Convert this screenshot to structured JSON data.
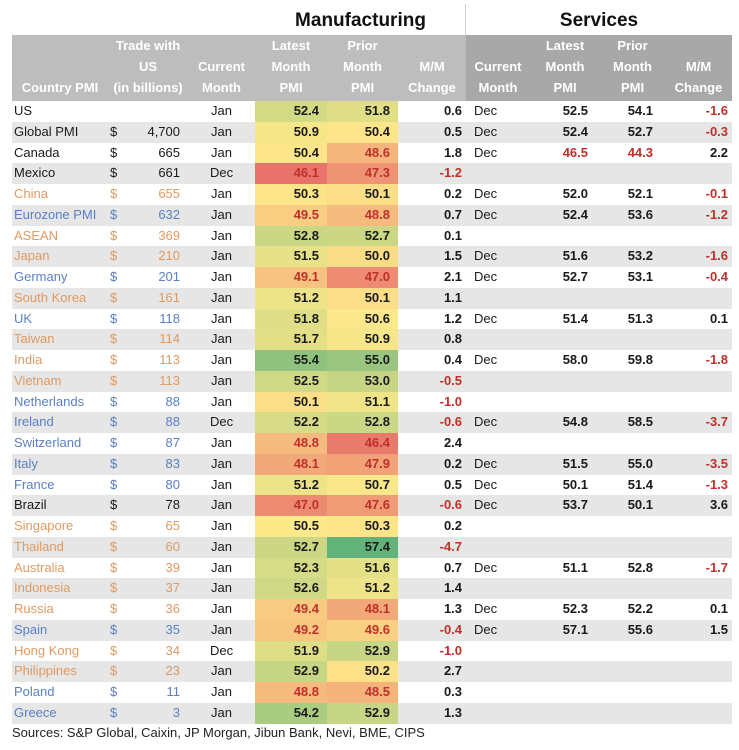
{
  "titles": {
    "manufacturing": "Manufacturing",
    "services": "Services"
  },
  "headers": {
    "country": [
      "Country PMI"
    ],
    "trade": [
      "Trade with",
      "US",
      "(in billions)"
    ],
    "mfg_current": [
      "Current",
      "Month"
    ],
    "mfg_latest": [
      "Latest",
      "Month",
      "PMI"
    ],
    "mfg_prior": [
      "Prior",
      "Month",
      "PMI"
    ],
    "mfg_mm": [
      "M/M",
      "Change"
    ],
    "svc_current": [
      "Current",
      "Month"
    ],
    "svc_latest": [
      "Latest",
      "Month",
      "PMI"
    ],
    "svc_prior": [
      "Prior",
      "Month",
      "PMI"
    ],
    "svc_mm": [
      "M/M",
      "Change"
    ]
  },
  "colors": {
    "header_mfg": "#bdbdbd",
    "header_svc": "#a8a8a8",
    "negative": "#c0302a",
    "group_americas": "#1a1a1a",
    "group_asia": "#e09a62",
    "group_europe": "#5b7fc4",
    "heat_low": "#e8736a",
    "heat_mid": "#fde98a",
    "heat_high": "#63b27a"
  },
  "sources": "Sources: S&P Global, Caixin, JP Morgan, Jibun Bank, Nevi, BME, CIPS",
  "chart_data": {
    "type": "table",
    "title": "Country PMI — Manufacturing and Services",
    "heatmap_columns": [
      "mfg_latest",
      "mfg_prior"
    ],
    "heatmap_scale": {
      "min": 46.1,
      "mid": 50.5,
      "max": 57.4
    },
    "rows": [
      {
        "country": "US",
        "group": "black",
        "dollar": "",
        "trade": "",
        "mfg_current": "Jan",
        "mfg_latest": 52.4,
        "mfg_prior": 51.8,
        "mfg_mm": "0.6",
        "svc_current": "Dec",
        "svc_latest": "52.5",
        "svc_prior": "54.1",
        "svc_mm": "-1.6"
      },
      {
        "country": "Global PMI",
        "group": "black",
        "dollar": "$",
        "trade": "4,700",
        "mfg_current": "Jan",
        "mfg_latest": 50.9,
        "mfg_prior": 50.4,
        "mfg_mm": "0.5",
        "svc_current": "Dec",
        "svc_latest": "52.4",
        "svc_prior": "52.7",
        "svc_mm": "-0.3"
      },
      {
        "country": "Canada",
        "group": "black",
        "dollar": "$",
        "trade": "665",
        "mfg_current": "Jan",
        "mfg_latest": 50.4,
        "mfg_prior": 48.6,
        "mfg_mm": "1.8",
        "svc_current": "Dec",
        "svc_latest": "46.5",
        "svc_prior": "44.3",
        "svc_mm": "2.2"
      },
      {
        "country": "Mexico",
        "group": "black",
        "dollar": "$",
        "trade": "661",
        "mfg_current": "Dec",
        "mfg_latest": 46.1,
        "mfg_prior": 47.3,
        "mfg_mm": "-1.2",
        "svc_current": "",
        "svc_latest": "",
        "svc_prior": "",
        "svc_mm": ""
      },
      {
        "country": "China",
        "group": "orange",
        "dollar": "$",
        "trade": "655",
        "mfg_current": "Jan",
        "mfg_latest": 50.3,
        "mfg_prior": 50.1,
        "mfg_mm": "0.2",
        "svc_current": "Dec",
        "svc_latest": "52.0",
        "svc_prior": "52.1",
        "svc_mm": "-0.1"
      },
      {
        "country": "Eurozone PMI",
        "group": "blue",
        "dollar": "$",
        "trade": "632",
        "mfg_current": "Jan",
        "mfg_latest": 49.5,
        "mfg_prior": 48.8,
        "mfg_mm": "0.7",
        "svc_current": "Dec",
        "svc_latest": "52.4",
        "svc_prior": "53.6",
        "svc_mm": "-1.2"
      },
      {
        "country": "ASEAN",
        "group": "orange",
        "dollar": "$",
        "trade": "369",
        "mfg_current": "Jan",
        "mfg_latest": 52.8,
        "mfg_prior": 52.7,
        "mfg_mm": "0.1",
        "svc_current": "",
        "svc_latest": "",
        "svc_prior": "",
        "svc_mm": ""
      },
      {
        "country": "Japan",
        "group": "orange",
        "dollar": "$",
        "trade": "210",
        "mfg_current": "Jan",
        "mfg_latest": 51.5,
        "mfg_prior": 50.0,
        "mfg_mm": "1.5",
        "svc_current": "Dec",
        "svc_latest": "51.6",
        "svc_prior": "53.2",
        "svc_mm": "-1.6"
      },
      {
        "country": "Germany",
        "group": "blue",
        "dollar": "$",
        "trade": "201",
        "mfg_current": "Jan",
        "mfg_latest": 49.1,
        "mfg_prior": 47.0,
        "mfg_mm": "2.1",
        "svc_current": "Dec",
        "svc_latest": "52.7",
        "svc_prior": "53.1",
        "svc_mm": "-0.4"
      },
      {
        "country": "South Korea",
        "group": "orange",
        "dollar": "$",
        "trade": "161",
        "mfg_current": "Jan",
        "mfg_latest": 51.2,
        "mfg_prior": 50.1,
        "mfg_mm": "1.1",
        "svc_current": "",
        "svc_latest": "",
        "svc_prior": "",
        "svc_mm": ""
      },
      {
        "country": "UK",
        "group": "blue",
        "dollar": "$",
        "trade": "118",
        "mfg_current": "Jan",
        "mfg_latest": 51.8,
        "mfg_prior": 50.6,
        "mfg_mm": "1.2",
        "svc_current": "Dec",
        "svc_latest": "51.4",
        "svc_prior": "51.3",
        "svc_mm": "0.1"
      },
      {
        "country": "Taiwan",
        "group": "orange",
        "dollar": "$",
        "trade": "114",
        "mfg_current": "Jan",
        "mfg_latest": 51.7,
        "mfg_prior": 50.9,
        "mfg_mm": "0.8",
        "svc_current": "",
        "svc_latest": "",
        "svc_prior": "",
        "svc_mm": ""
      },
      {
        "country": "India",
        "group": "orange",
        "dollar": "$",
        "trade": "113",
        "mfg_current": "Jan",
        "mfg_latest": 55.4,
        "mfg_prior": 55.0,
        "mfg_mm": "0.4",
        "svc_current": "Dec",
        "svc_latest": "58.0",
        "svc_prior": "59.8",
        "svc_mm": "-1.8"
      },
      {
        "country": "Vietnam",
        "group": "orange",
        "dollar": "$",
        "trade": "113",
        "mfg_current": "Jan",
        "mfg_latest": 52.5,
        "mfg_prior": 53.0,
        "mfg_mm": "-0.5",
        "svc_current": "",
        "svc_latest": "",
        "svc_prior": "",
        "svc_mm": ""
      },
      {
        "country": "Netherlands",
        "group": "blue",
        "dollar": "$",
        "trade": "88",
        "mfg_current": "Jan",
        "mfg_latest": 50.1,
        "mfg_prior": 51.1,
        "mfg_mm": "-1.0",
        "svc_current": "",
        "svc_latest": "",
        "svc_prior": "",
        "svc_mm": ""
      },
      {
        "country": "Ireland",
        "group": "blue",
        "dollar": "$",
        "trade": "88",
        "mfg_current": "Dec",
        "mfg_latest": 52.2,
        "mfg_prior": 52.8,
        "mfg_mm": "-0.6",
        "svc_current": "Dec",
        "svc_latest": "54.8",
        "svc_prior": "58.5",
        "svc_mm": "-3.7"
      },
      {
        "country": "Switzerland",
        "group": "blue",
        "dollar": "$",
        "trade": "87",
        "mfg_current": "Jan",
        "mfg_latest": 48.8,
        "mfg_prior": 46.4,
        "mfg_mm": "2.4",
        "svc_current": "",
        "svc_latest": "",
        "svc_prior": "",
        "svc_mm": ""
      },
      {
        "country": "Italy",
        "group": "blue",
        "dollar": "$",
        "trade": "83",
        "mfg_current": "Jan",
        "mfg_latest": 48.1,
        "mfg_prior": 47.9,
        "mfg_mm": "0.2",
        "svc_current": "Dec",
        "svc_latest": "51.5",
        "svc_prior": "55.0",
        "svc_mm": "-3.5"
      },
      {
        "country": "France",
        "group": "blue",
        "dollar": "$",
        "trade": "80",
        "mfg_current": "Jan",
        "mfg_latest": 51.2,
        "mfg_prior": 50.7,
        "mfg_mm": "0.5",
        "svc_current": "Dec",
        "svc_latest": "50.1",
        "svc_prior": "51.4",
        "svc_mm": "-1.3"
      },
      {
        "country": "Brazil",
        "group": "black",
        "dollar": "$",
        "trade": "78",
        "mfg_current": "Jan",
        "mfg_latest": 47.0,
        "mfg_prior": 47.6,
        "mfg_mm": "-0.6",
        "svc_current": "Dec",
        "svc_latest": "53.7",
        "svc_prior": "50.1",
        "svc_mm": "3.6"
      },
      {
        "country": "Singapore",
        "group": "orange",
        "dollar": "$",
        "trade": "65",
        "mfg_current": "Jan",
        "mfg_latest": 50.5,
        "mfg_prior": 50.3,
        "mfg_mm": "0.2",
        "svc_current": "",
        "svc_latest": "",
        "svc_prior": "",
        "svc_mm": ""
      },
      {
        "country": "Thailand",
        "group": "orange",
        "dollar": "$",
        "trade": "60",
        "mfg_current": "Jan",
        "mfg_latest": 52.7,
        "mfg_prior": 57.4,
        "mfg_mm": "-4.7",
        "svc_current": "",
        "svc_latest": "",
        "svc_prior": "",
        "svc_mm": ""
      },
      {
        "country": "Australia",
        "group": "orange",
        "dollar": "$",
        "trade": "39",
        "mfg_current": "Jan",
        "mfg_latest": 52.3,
        "mfg_prior": 51.6,
        "mfg_mm": "0.7",
        "svc_current": "Dec",
        "svc_latest": "51.1",
        "svc_prior": "52.8",
        "svc_mm": "-1.7"
      },
      {
        "country": "Indonesia",
        "group": "orange",
        "dollar": "$",
        "trade": "37",
        "mfg_current": "Jan",
        "mfg_latest": 52.6,
        "mfg_prior": 51.2,
        "mfg_mm": "1.4",
        "svc_current": "",
        "svc_latest": "",
        "svc_prior": "",
        "svc_mm": ""
      },
      {
        "country": "Russia",
        "group": "orange",
        "dollar": "$",
        "trade": "36",
        "mfg_current": "Jan",
        "mfg_latest": 49.4,
        "mfg_prior": 48.1,
        "mfg_mm": "1.3",
        "svc_current": "Dec",
        "svc_latest": "52.3",
        "svc_prior": "52.2",
        "svc_mm": "0.1"
      },
      {
        "country": "Spain",
        "group": "blue",
        "dollar": "$",
        "trade": "35",
        "mfg_current": "Jan",
        "mfg_latest": 49.2,
        "mfg_prior": 49.6,
        "mfg_mm": "-0.4",
        "svc_current": "Dec",
        "svc_latest": "57.1",
        "svc_prior": "55.6",
        "svc_mm": "1.5"
      },
      {
        "country": "Hong Kong",
        "group": "orange",
        "dollar": "$",
        "trade": "34",
        "mfg_current": "Dec",
        "mfg_latest": 51.9,
        "mfg_prior": 52.9,
        "mfg_mm": "-1.0",
        "svc_current": "",
        "svc_latest": "",
        "svc_prior": "",
        "svc_mm": ""
      },
      {
        "country": "Philippines",
        "group": "orange",
        "dollar": "$",
        "trade": "23",
        "mfg_current": "Jan",
        "mfg_latest": 52.9,
        "mfg_prior": 50.2,
        "mfg_mm": "2.7",
        "svc_current": "",
        "svc_latest": "",
        "svc_prior": "",
        "svc_mm": ""
      },
      {
        "country": "Poland",
        "group": "blue",
        "dollar": "$",
        "trade": "11",
        "mfg_current": "Jan",
        "mfg_latest": 48.8,
        "mfg_prior": 48.5,
        "mfg_mm": "0.3",
        "svc_current": "",
        "svc_latest": "",
        "svc_prior": "",
        "svc_mm": ""
      },
      {
        "country": "Greece",
        "group": "blue",
        "dollar": "$",
        "trade": "3",
        "mfg_current": "Jan",
        "mfg_latest": 54.2,
        "mfg_prior": 52.9,
        "mfg_mm": "1.3",
        "svc_current": "",
        "svc_latest": "",
        "svc_prior": "",
        "svc_mm": ""
      }
    ]
  }
}
